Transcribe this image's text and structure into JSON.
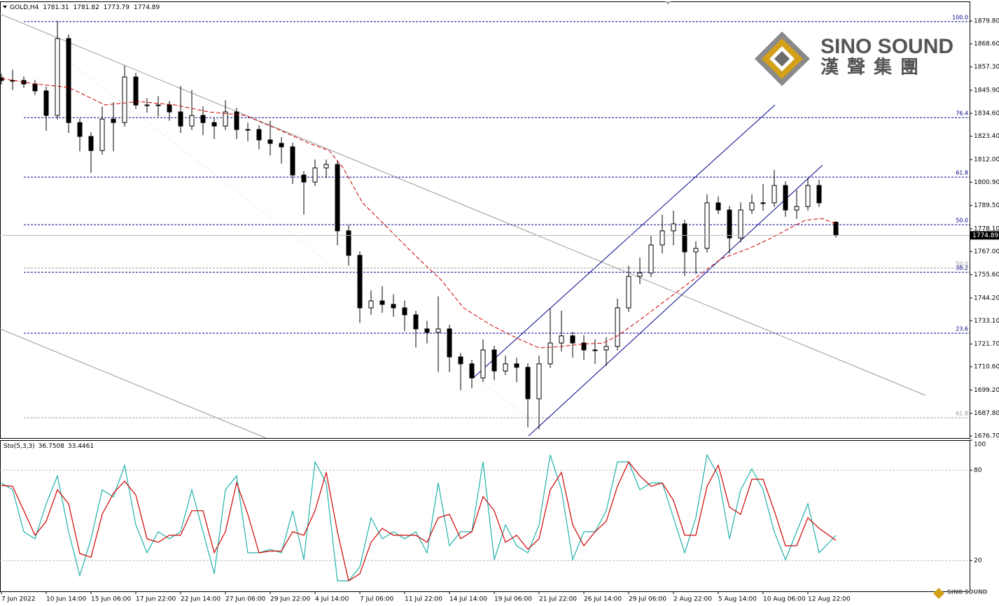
{
  "header": {
    "symbol": "GOLD,H4"
  },
  "logo": {
    "name": "SINO SOUND",
    "chinese": "漢聲集團"
  },
  "chart_data": [
    {
      "type": "candlestick",
      "color": "#000000",
      "x": [
        0,
        4,
        8,
        12,
        16,
        20,
        24,
        28,
        32,
        36,
        40,
        44,
        48,
        52,
        56,
        60,
        64,
        68,
        72,
        76,
        80,
        84,
        88,
        92,
        96,
        100,
        104,
        108,
        112,
        116,
        120,
        124,
        128,
        132,
        136,
        140,
        144,
        148,
        152,
        156,
        160,
        164,
        168,
        172,
        176,
        180,
        184,
        188,
        192,
        196,
        200,
        204,
        208,
        212,
        216,
        220,
        224,
        228,
        232,
        236,
        240,
        244,
        248,
        252,
        256,
        260,
        264,
        268,
        272,
        276,
        280,
        284,
        288,
        292,
        298
      ],
      "open": [
        1852.0,
        1850.7,
        1850.7,
        1849.0,
        1845.6,
        1833.6,
        1871.2,
        1830.1,
        1823.3,
        1816.4,
        1831.8,
        1830.1,
        1852.4,
        1838.7,
        1838.7,
        1838.7,
        1835.3,
        1828.4,
        1833.6,
        1830.1,
        1828.4,
        1835.3,
        1826.7,
        1826.7,
        1821.6,
        1819.9,
        1818.2,
        1804.4,
        1801.0,
        1807.9,
        1809.6,
        1777.1,
        1765.1,
        1739.4,
        1742.8,
        1741.1,
        1739.4,
        1736.0,
        1729.1,
        1727.4,
        1729.1,
        1715.4,
        1712.0,
        1705.1,
        1718.8,
        1708.5,
        1712.0,
        1710.3,
        1694.9,
        1712.0,
        1722.2,
        1725.7,
        1722.2,
        1718.8,
        1718.8,
        1720.5,
        1739.4,
        1754.8,
        1756.5,
        1770.2,
        1777.1,
        1780.5,
        1766.8,
        1768.5,
        1790.8,
        1787.3,
        1773.6,
        1787.3,
        1790.8,
        1790.8,
        1799.3,
        1787.3,
        1789.0,
        1799.3,
        1781.31
      ],
      "high": [
        1854.0,
        1856.0,
        1852.7,
        1851.0,
        1847.6,
        1880.0,
        1873.2,
        1832.1,
        1825.3,
        1838.0,
        1840.0,
        1858.0,
        1854.4,
        1842.0,
        1843.0,
        1840.7,
        1848.0,
        1846.0,
        1838.0,
        1832.1,
        1841.0,
        1837.3,
        1830.0,
        1828.7,
        1831.0,
        1823.0,
        1820.2,
        1806.4,
        1812.0,
        1812.0,
        1811.6,
        1780.0,
        1767.1,
        1748.0,
        1750.0,
        1746.0,
        1743.0,
        1738.0,
        1733.0,
        1745.0,
        1731.1,
        1717.4,
        1714.0,
        1724.0,
        1720.8,
        1716.0,
        1715.0,
        1712.3,
        1716.0,
        1739.0,
        1738.0,
        1727.7,
        1726.0,
        1724.0,
        1725.0,
        1744.0,
        1760.0,
        1764.0,
        1775.0,
        1785.0,
        1787.0,
        1782.5,
        1772.0,
        1795.0,
        1794.0,
        1789.3,
        1791.0,
        1795.0,
        1800.0,
        1807.0,
        1801.3,
        1797.0,
        1803.0,
        1802.0,
        1781.82
      ],
      "low": [
        1848.7,
        1846.0,
        1847.0,
        1843.6,
        1826.0,
        1831.6,
        1825.0,
        1816.0,
        1805.5,
        1814.4,
        1816.0,
        1828.1,
        1836.7,
        1835.0,
        1833.0,
        1831.0,
        1825.0,
        1826.4,
        1824.0,
        1822.0,
        1826.4,
        1822.0,
        1821.0,
        1817.0,
        1814.0,
        1810.0,
        1800.0,
        1785.0,
        1799.0,
        1803.0,
        1770.0,
        1760.0,
        1732.0,
        1736.0,
        1737.0,
        1735.0,
        1728.0,
        1720.0,
        1722.0,
        1708.0,
        1708.0,
        1699.0,
        1700.0,
        1703.1,
        1704.0,
        1706.5,
        1703.0,
        1681.0,
        1680.0,
        1710.0,
        1718.0,
        1715.0,
        1714.0,
        1712.0,
        1711.0,
        1718.5,
        1737.4,
        1751.0,
        1754.5,
        1766.0,
        1770.0,
        1755.0,
        1756.0,
        1766.5,
        1785.3,
        1766.0,
        1771.6,
        1785.3,
        1787.0,
        1788.8,
        1784.0,
        1783.0,
        1787.0,
        1788.8,
        1773.79
      ],
      "close": [
        1850.7,
        1850.7,
        1849.0,
        1845.6,
        1833.6,
        1871.2,
        1830.1,
        1823.3,
        1816.4,
        1831.8,
        1830.1,
        1852.4,
        1838.7,
        1838.7,
        1838.7,
        1835.3,
        1828.4,
        1833.6,
        1830.1,
        1828.4,
        1835.3,
        1826.7,
        1826.7,
        1821.6,
        1819.9,
        1818.2,
        1804.4,
        1801.0,
        1807.9,
        1809.6,
        1777.1,
        1765.1,
        1739.4,
        1742.8,
        1741.1,
        1739.4,
        1736.0,
        1729.1,
        1727.4,
        1729.1,
        1715.4,
        1712.0,
        1705.1,
        1718.8,
        1708.5,
        1712.0,
        1710.3,
        1694.9,
        1712.0,
        1722.2,
        1725.7,
        1722.2,
        1718.8,
        1718.8,
        1720.5,
        1739.4,
        1754.8,
        1756.5,
        1770.2,
        1777.1,
        1780.5,
        1766.8,
        1768.5,
        1790.8,
        1787.3,
        1773.6,
        1787.3,
        1790.8,
        1790.8,
        1799.3,
        1787.3,
        1789.0,
        1799.3,
        1790.8,
        1774.89
      ],
      "moving_average": {
        "color": "#cc0000",
        "x": [
          0,
          12,
          24,
          37,
          49,
          62,
          74,
          87,
          99,
          110,
          117,
          122,
          129,
          139,
          149,
          157,
          165,
          175,
          185,
          192,
          200,
          207,
          215,
          220,
          227,
          237,
          247,
          257,
          267,
          275,
          282,
          287,
          293,
          298
        ],
        "values": [
          1851.7,
          1849.0,
          1847.3,
          1838.7,
          1840.4,
          1838.7,
          1835.3,
          1833.6,
          1826.7,
          1819.9,
          1816.4,
          1807.9,
          1790.8,
          1777.1,
          1763.4,
          1753.1,
          1739.4,
          1730.8,
          1724.0,
          1719.8,
          1720.5,
          1721.6,
          1722.2,
          1725.7,
          1732.5,
          1742.8,
          1753.1,
          1763.4,
          1768.5,
          1773.6,
          1778.8,
          1782.2,
          1783.2,
          1780.5
        ]
      },
      "fib_levels": [
        {
          "label": "100.0",
          "value": 1879.5,
          "color": "#00008b"
        },
        {
          "label": "76.4",
          "value": 1832.5,
          "color": "#00008b"
        },
        {
          "label": "61.8",
          "value": 1803.4,
          "color": "#00008b"
        },
        {
          "label": "50.0",
          "value": 1780.1,
          "color": "#00008b"
        },
        {
          "label": "38.2",
          "value": 1756.8,
          "color": "#00008b"
        },
        {
          "label": "23.6",
          "value": 1727.0,
          "color": "#00008b"
        },
        {
          "label": "50.0",
          "value": 1758.9,
          "color": "#999999"
        },
        {
          "label": "61.8",
          "value": 1685.6,
          "color": "#999999"
        }
      ],
      "xlim": [
        -0.5,
        345.75
      ],
      "ylim": [
        1675.67,
        1889.4
      ],
      "xticks": [
        {
          "value": 0,
          "label": "7 Jun 2022"
        },
        {
          "value": 16,
          "label": "10 Jun 14:00"
        },
        {
          "value": 32,
          "label": "15 Jun 06:00"
        },
        {
          "value": 48,
          "label": "17 Jun 22:00"
        },
        {
          "value": 64,
          "label": "22 Jun 14:00"
        },
        {
          "value": 80,
          "label": "27 Jun 06:00"
        },
        {
          "value": 96,
          "label": "29 Jun 22:00"
        },
        {
          "value": 112,
          "label": "4 Jul 14:00"
        },
        {
          "value": 128,
          "label": "7 Jul 06:00"
        },
        {
          "value": 144,
          "label": "11 Jul 22:00"
        },
        {
          "value": 160,
          "label": "14 Jul 14:00"
        },
        {
          "value": 176,
          "label": "19 Jul 06:00"
        },
        {
          "value": 192,
          "label": "21 Jul 22:00"
        },
        {
          "value": 208,
          "label": "26 Jul 14:00"
        },
        {
          "value": 224,
          "label": "29 Jul 06:00"
        },
        {
          "value": 240,
          "label": "2 Aug 22:00"
        },
        {
          "value": 256,
          "label": "5 Aug 14:00"
        },
        {
          "value": 272,
          "label": "10 Aug 06:00"
        },
        {
          "value": 288,
          "label": "12 Aug 22:00"
        }
      ],
      "yticks": [
        {
          "value": 1879.8,
          "label": "1879.80"
        },
        {
          "value": 1868.6,
          "label": "1868.60"
        },
        {
          "value": 1857.3,
          "label": "1857.30"
        },
        {
          "value": 1845.9,
          "label": "1845.90"
        },
        {
          "value": 1834.6,
          "label": "1834.60"
        },
        {
          "value": 1823.4,
          "label": "1823.40"
        },
        {
          "value": 1812.0,
          "label": "1812.00"
        },
        {
          "value": 1800.9,
          "label": "1800.90"
        },
        {
          "value": 1789.5,
          "label": "1789.50"
        },
        {
          "value": 1778.1,
          "label": "1778.10"
        },
        {
          "value": 1767.0,
          "label": "1767.00"
        },
        {
          "value": 1755.6,
          "label": "1755.60"
        },
        {
          "value": 1744.2,
          "label": "1744.20"
        },
        {
          "value": 1733.1,
          "label": "1733.10"
        },
        {
          "value": 1721.7,
          "label": "1721.70"
        },
        {
          "value": 1710.6,
          "label": "1710.60"
        },
        {
          "value": 1699.2,
          "label": "1699.20"
        },
        {
          "value": 1687.8,
          "label": "1687.80"
        },
        {
          "value": 1676.7,
          "label": "1676.70"
        }
      ]
    },
    {
      "type": "line",
      "title": "Sto(5,3,3)",
      "x": [
        0,
        4,
        8,
        12,
        16,
        20,
        24,
        28,
        32,
        36,
        40,
        44,
        48,
        52,
        56,
        60,
        64,
        68,
        72,
        76,
        80,
        84,
        88,
        92,
        96,
        100,
        104,
        108,
        112,
        116,
        120,
        124,
        128,
        132,
        136,
        140,
        144,
        148,
        152,
        156,
        160,
        164,
        168,
        172,
        176,
        180,
        184,
        188,
        192,
        196,
        200,
        204,
        208,
        212,
        216,
        220,
        224,
        228,
        232,
        236,
        240,
        244,
        248,
        252,
        256,
        260,
        264,
        268,
        272,
        276,
        280,
        284,
        288,
        292,
        298
      ],
      "series": [
        {
          "color": "#20b2aa",
          "values": [
            71.6,
            67.0,
            39.1,
            34.4,
            57.7,
            76.3,
            39.1,
            10.0,
            34.4,
            67.0,
            62.3,
            83.3,
            43.7,
            25.1,
            39.1,
            34.4,
            39.1,
            67.0,
            39.1,
            11.2,
            67.0,
            76.3,
            25.1,
            25.1,
            27.4,
            25.1,
            53.0,
            20.5,
            85.6,
            71.6,
            6.5,
            6.5,
            15.8,
            48.4,
            34.4,
            39.1,
            34.4,
            39.1,
            25.1,
            71.6,
            29.8,
            39.1,
            39.1,
            85.6,
            20.5,
            43.7,
            29.8,
            25.1,
            43.7,
            90.2,
            67.0,
            20.5,
            39.1,
            39.1,
            53.0,
            85.6,
            85.6,
            67.0,
            71.6,
            71.6,
            48.4,
            25.1,
            48.4,
            90.2,
            76.3,
            34.4,
            67.0,
            80.9,
            67.0,
            39.1,
            20.5,
            39.1,
            57.7,
            25.1,
            36.7508
          ]
        },
        {
          "color": "#d00000",
          "values": [
            70.0,
            69.3,
            53.1,
            36.8,
            46.1,
            67.0,
            57.7,
            24.6,
            22.2,
            50.7,
            64.7,
            72.8,
            63.5,
            34.4,
            32.1,
            36.8,
            36.8,
            53.1,
            53.1,
            25.2,
            39.1,
            71.7,
            50.7,
            25.1,
            26.3,
            26.3,
            39.1,
            36.8,
            53.1,
            78.6,
            39.1,
            6.5,
            11.2,
            32.1,
            41.4,
            36.8,
            36.8,
            36.8,
            32.1,
            48.4,
            50.7,
            34.5,
            39.1,
            62.4,
            53.1,
            32.1,
            36.8,
            27.5,
            34.4,
            67.0,
            78.6,
            43.8,
            29.8,
            39.1,
            46.1,
            69.3,
            85.6,
            76.3,
            69.3,
            71.6,
            60.0,
            36.8,
            36.8,
            69.3,
            83.3,
            55.4,
            50.7,
            74.0,
            74.0,
            53.1,
            29.8,
            29.8,
            48.4,
            41.4,
            33.4461
          ]
        }
      ],
      "xlim": [
        -0.5,
        345.75
      ],
      "ylim": [
        0,
        100
      ],
      "yticks": [
        20,
        80,
        100
      ],
      "levels": [
        20,
        80
      ]
    }
  ]
}
